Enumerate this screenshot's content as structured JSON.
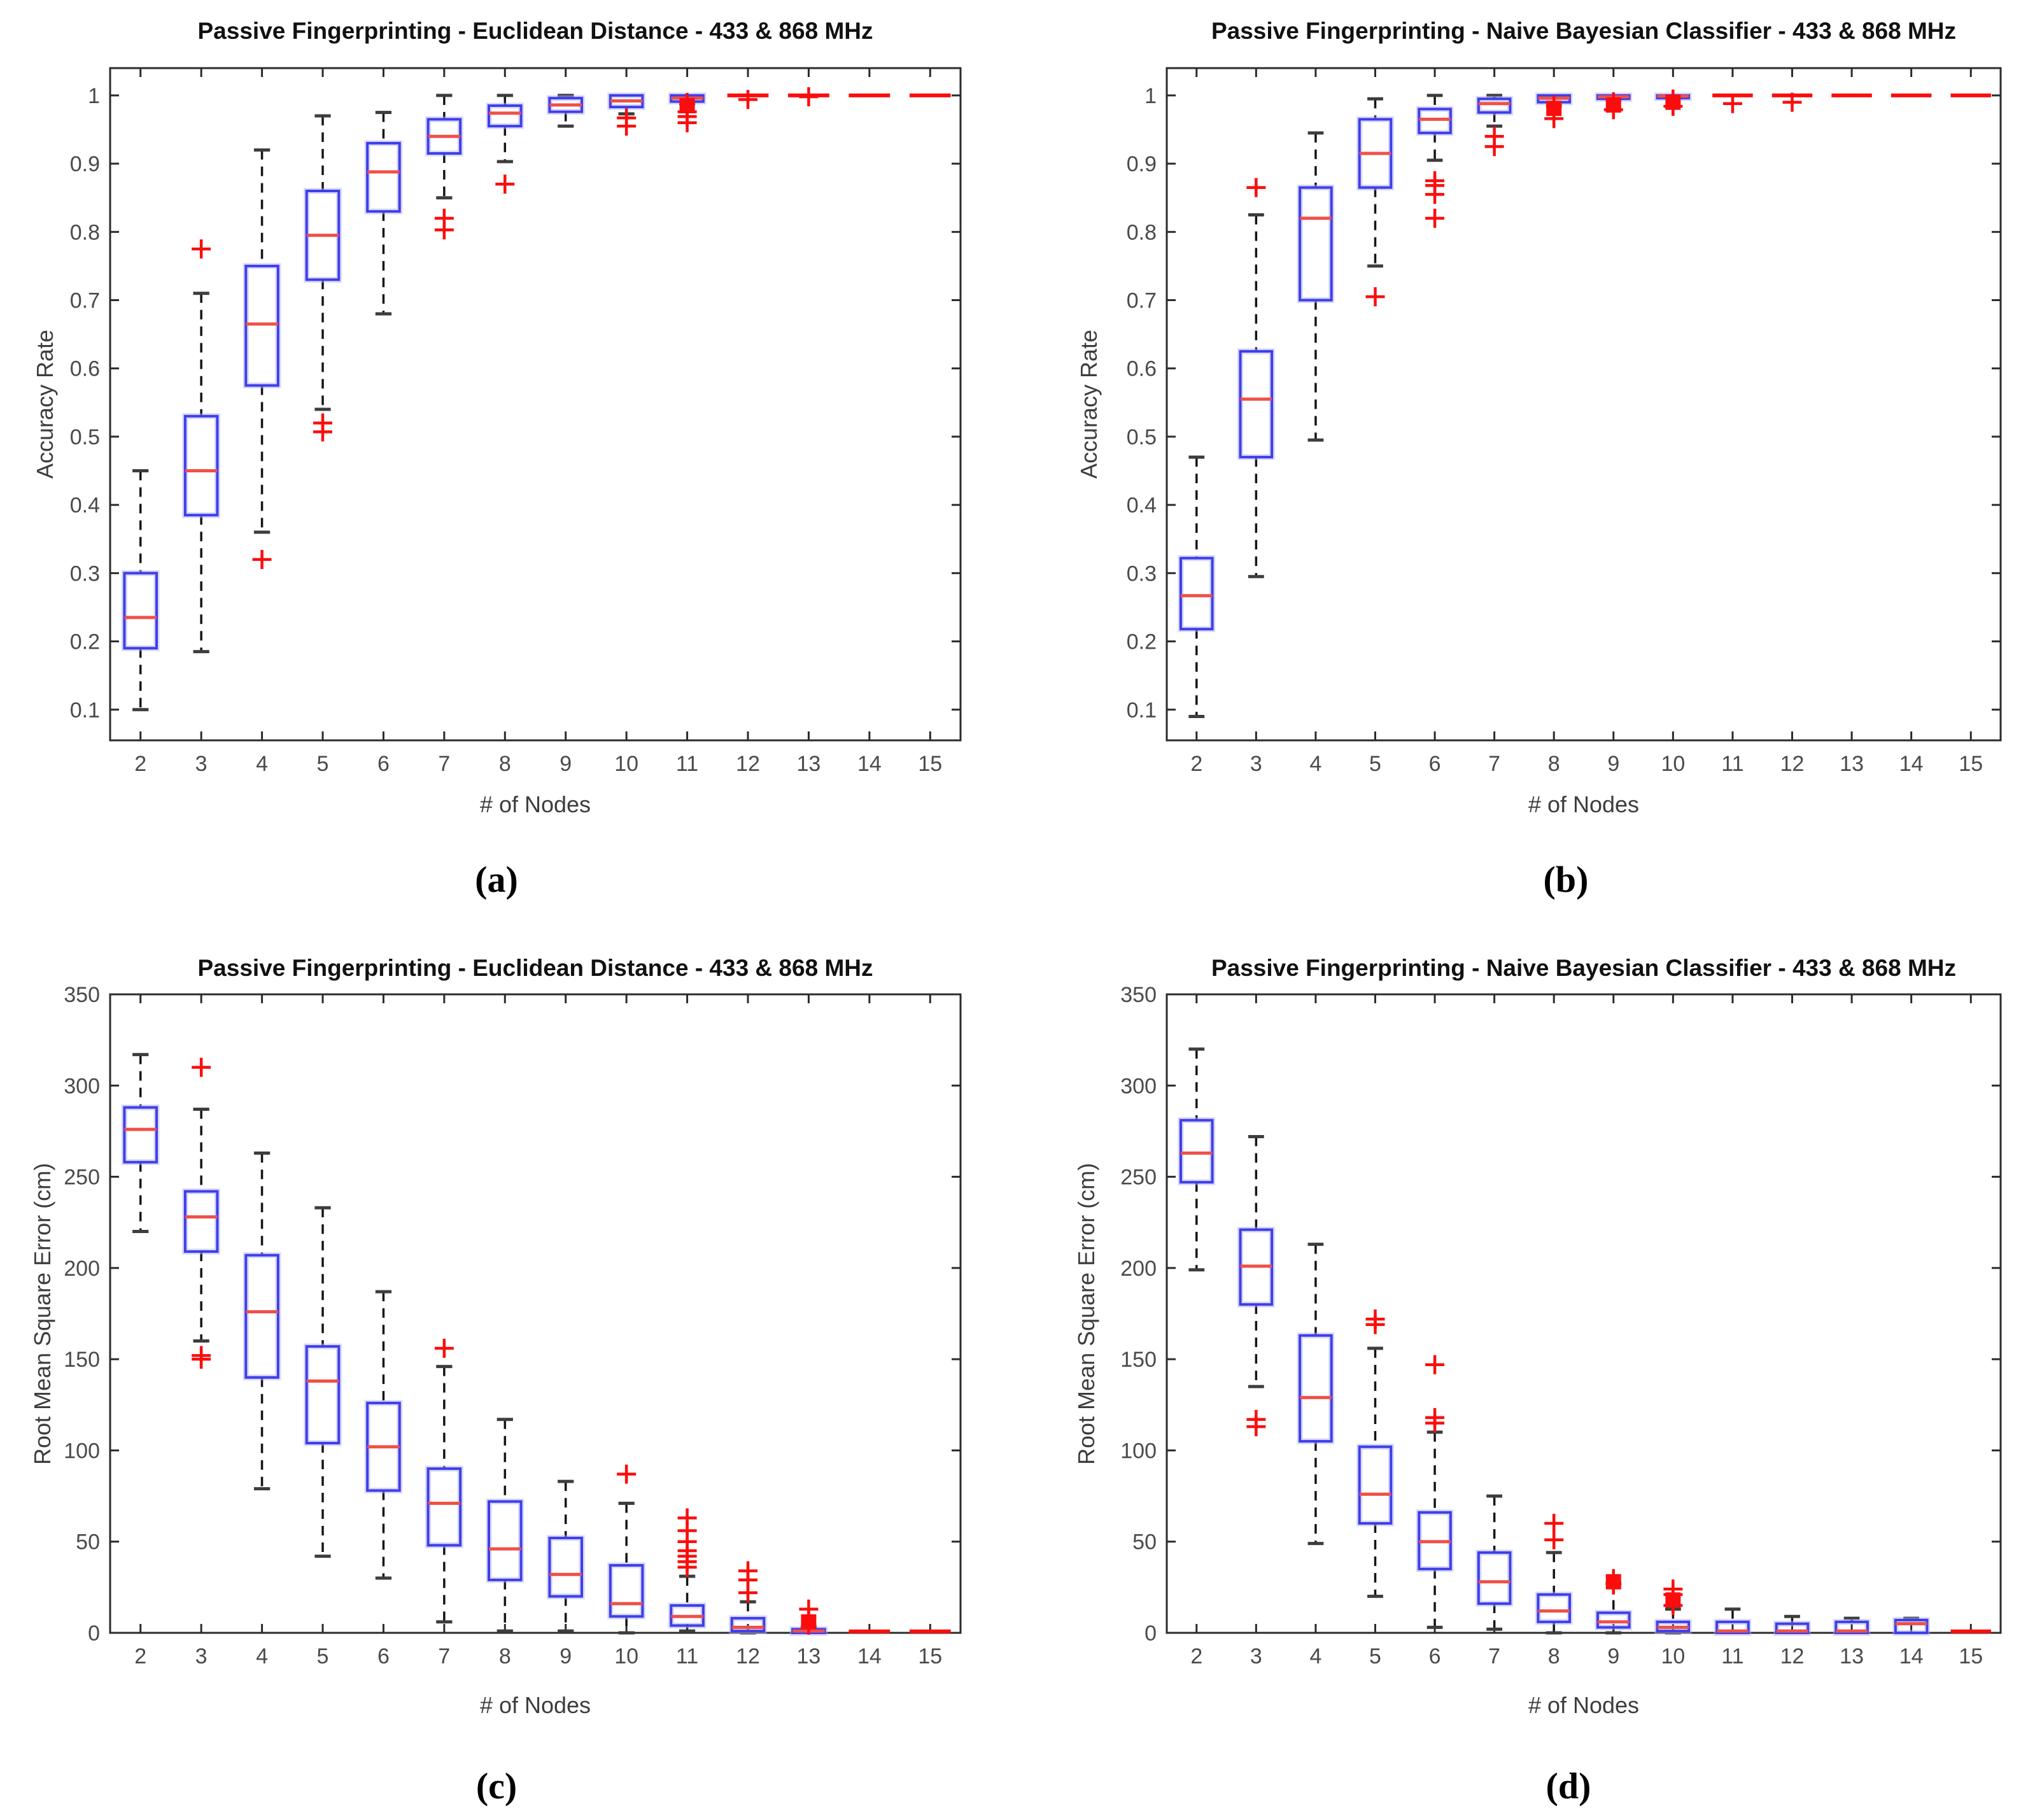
{
  "colors": {
    "box": "#3f3fe8",
    "box_halo": "#aeaeff",
    "median": "#ef5048",
    "outlier": "#fb0d0d",
    "whisker": "#141414",
    "cap": "#3d3d3d",
    "frame": "#2b2b2b",
    "tick_label": "#4a4a4a"
  },
  "chart_data": [
    {
      "type": "boxplot",
      "panel_label": "(a)",
      "title": "Passive Fingerprinting - Euclidean Distance - 433 & 868 MHz",
      "xlabel": "# of Nodes",
      "ylabel": "Accuracy Rate",
      "ylim": [
        0.055,
        1.04
      ],
      "grid": false,
      "categories": [
        "2",
        "3",
        "4",
        "5",
        "6",
        "7",
        "8",
        "9",
        "10",
        "11",
        "12",
        "13",
        "14",
        "15"
      ],
      "yticks": [
        {
          "v": 0.1,
          "t": "0.1"
        },
        {
          "v": 0.2,
          "t": "0.2"
        },
        {
          "v": 0.3,
          "t": "0.3"
        },
        {
          "v": 0.4,
          "t": "0.4"
        },
        {
          "v": 0.5,
          "t": "0.5"
        },
        {
          "v": 0.6,
          "t": "0.6"
        },
        {
          "v": 0.7,
          "t": "0.7"
        },
        {
          "v": 0.8,
          "t": "0.8"
        },
        {
          "v": 0.9,
          "t": "0.9"
        },
        {
          "v": 1.0,
          "t": "1"
        }
      ],
      "boxes": [
        {
          "x": "2",
          "lo": 0.1,
          "q1": 0.19,
          "med": 0.235,
          "q3": 0.3,
          "hi": 0.45,
          "out": [],
          "sq": []
        },
        {
          "x": "3",
          "lo": 0.185,
          "q1": 0.385,
          "med": 0.45,
          "q3": 0.53,
          "hi": 0.71,
          "out": [
            0.775
          ],
          "sq": []
        },
        {
          "x": "4",
          "lo": 0.36,
          "q1": 0.575,
          "med": 0.665,
          "q3": 0.75,
          "hi": 0.92,
          "out": [
            0.32
          ],
          "sq": []
        },
        {
          "x": "5",
          "lo": 0.54,
          "q1": 0.73,
          "med": 0.795,
          "q3": 0.86,
          "hi": 0.97,
          "out": [
            0.52,
            0.507
          ],
          "sq": []
        },
        {
          "x": "6",
          "lo": 0.68,
          "q1": 0.83,
          "med": 0.888,
          "q3": 0.93,
          "hi": 0.975,
          "out": [],
          "sq": []
        },
        {
          "x": "7",
          "lo": 0.85,
          "q1": 0.915,
          "med": 0.94,
          "q3": 0.965,
          "hi": 1.0,
          "out": [
            0.82,
            0.803
          ],
          "sq": []
        },
        {
          "x": "8",
          "lo": 0.903,
          "q1": 0.955,
          "med": 0.974,
          "q3": 0.985,
          "hi": 1.0,
          "out": [
            0.87
          ],
          "sq": []
        },
        {
          "x": "9",
          "lo": 0.955,
          "q1": 0.976,
          "med": 0.986,
          "q3": 0.996,
          "hi": 1.0,
          "out": [],
          "sq": []
        },
        {
          "x": "10",
          "lo": 0.973,
          "q1": 0.983,
          "med": 0.992,
          "q3": 1.0,
          "hi": 1.0,
          "out": [
            0.967,
            0.955
          ],
          "sq": []
        },
        {
          "x": "11",
          "lo": 0.988,
          "q1": 0.991,
          "med": 0.996,
          "q3": 1.0,
          "hi": 1.0,
          "out": [
            0.976,
            0.969,
            0.96
          ],
          "sq": [
            0.985
          ]
        },
        {
          "x": "12",
          "lo": 1.0,
          "q1": 1.0,
          "med": 1.0,
          "q3": 1.0,
          "hi": 1.0,
          "out": [
            0.994
          ],
          "sq": []
        },
        {
          "x": "13",
          "lo": 1.0,
          "q1": 1.0,
          "med": 1.0,
          "q3": 1.0,
          "hi": 1.0,
          "out": [
            0.998
          ],
          "sq": []
        },
        {
          "x": "14",
          "lo": 1.0,
          "q1": 1.0,
          "med": 1.0,
          "q3": 1.0,
          "hi": 1.0,
          "out": [],
          "sq": []
        },
        {
          "x": "15",
          "lo": 1.0,
          "q1": 1.0,
          "med": 1.0,
          "q3": 1.0,
          "hi": 1.0,
          "out": [],
          "sq": []
        }
      ]
    },
    {
      "type": "boxplot",
      "panel_label": "(b)",
      "title": "Passive Fingerprinting - Naive Bayesian Classifier - 433 & 868 MHz",
      "xlabel": "# of Nodes",
      "ylabel": "Accuracy Rate",
      "ylim": [
        0.055,
        1.04
      ],
      "grid": false,
      "categories": [
        "2",
        "3",
        "4",
        "5",
        "6",
        "7",
        "8",
        "9",
        "10",
        "11",
        "12",
        "13",
        "14",
        "15"
      ],
      "yticks": [
        {
          "v": 0.1,
          "t": "0.1"
        },
        {
          "v": 0.2,
          "t": "0.2"
        },
        {
          "v": 0.3,
          "t": "0.3"
        },
        {
          "v": 0.4,
          "t": "0.4"
        },
        {
          "v": 0.5,
          "t": "0.5"
        },
        {
          "v": 0.6,
          "t": "0.6"
        },
        {
          "v": 0.7,
          "t": "0.7"
        },
        {
          "v": 0.8,
          "t": "0.8"
        },
        {
          "v": 0.9,
          "t": "0.9"
        },
        {
          "v": 1.0,
          "t": "1"
        }
      ],
      "boxes": [
        {
          "x": "2",
          "lo": 0.09,
          "q1": 0.218,
          "med": 0.267,
          "q3": 0.322,
          "hi": 0.47,
          "out": [],
          "sq": []
        },
        {
          "x": "3",
          "lo": 0.295,
          "q1": 0.47,
          "med": 0.555,
          "q3": 0.625,
          "hi": 0.825,
          "out": [
            0.865
          ],
          "sq": []
        },
        {
          "x": "4",
          "lo": 0.495,
          "q1": 0.7,
          "med": 0.82,
          "q3": 0.865,
          "hi": 0.945,
          "out": [],
          "sq": []
        },
        {
          "x": "5",
          "lo": 0.75,
          "q1": 0.865,
          "med": 0.915,
          "q3": 0.965,
          "hi": 0.995,
          "out": [
            0.705
          ],
          "sq": []
        },
        {
          "x": "6",
          "lo": 0.905,
          "q1": 0.945,
          "med": 0.965,
          "q3": 0.98,
          "hi": 1.0,
          "out": [
            0.875,
            0.868,
            0.855,
            0.82
          ],
          "sq": []
        },
        {
          "x": "7",
          "lo": 0.955,
          "q1": 0.975,
          "med": 0.988,
          "q3": 0.995,
          "hi": 1.0,
          "out": [
            0.94,
            0.925
          ],
          "sq": []
        },
        {
          "x": "8",
          "lo": 0.985,
          "q1": 0.99,
          "med": 0.996,
          "q3": 1.0,
          "hi": 1.0,
          "out": [
            0.966
          ],
          "sq": [
            0.981
          ]
        },
        {
          "x": "9",
          "lo": 0.993,
          "q1": 0.995,
          "med": 0.998,
          "q3": 1.0,
          "hi": 1.0,
          "out": [
            0.979
          ],
          "sq": [
            0.986
          ]
        },
        {
          "x": "10",
          "lo": 0.995,
          "q1": 0.996,
          "med": 0.999,
          "q3": 1.0,
          "hi": 1.0,
          "out": [
            0.984
          ],
          "sq": [
            0.99
          ]
        },
        {
          "x": "11",
          "lo": 0.997,
          "q1": 0.998,
          "med": 1.0,
          "q3": 1.0,
          "hi": 1.0,
          "out": [
            0.988
          ],
          "sq": []
        },
        {
          "x": "12",
          "lo": 0.997,
          "q1": 0.998,
          "med": 1.0,
          "q3": 1.0,
          "hi": 1.0,
          "out": [
            0.99
          ],
          "sq": []
        },
        {
          "x": "13",
          "lo": 1.0,
          "q1": 1.0,
          "med": 1.0,
          "q3": 1.0,
          "hi": 1.0,
          "out": [],
          "sq": []
        },
        {
          "x": "14",
          "lo": 1.0,
          "q1": 1.0,
          "med": 1.0,
          "q3": 1.0,
          "hi": 1.0,
          "out": [],
          "sq": []
        },
        {
          "x": "15",
          "lo": 1.0,
          "q1": 1.0,
          "med": 1.0,
          "q3": 1.0,
          "hi": 1.0,
          "out": [],
          "sq": []
        }
      ]
    },
    {
      "type": "boxplot",
      "panel_label": "(c)",
      "title": "Passive Fingerprinting - Euclidean Distance - 433 & 868 MHz",
      "xlabel": "# of Nodes",
      "ylabel": "Root Mean Square Error (cm)",
      "ylim": [
        0,
        350
      ],
      "grid": false,
      "categories": [
        "2",
        "3",
        "4",
        "5",
        "6",
        "7",
        "8",
        "9",
        "10",
        "11",
        "12",
        "13",
        "14",
        "15"
      ],
      "yticks": [
        {
          "v": 0,
          "t": "0"
        },
        {
          "v": 50,
          "t": "50"
        },
        {
          "v": 100,
          "t": "100"
        },
        {
          "v": 150,
          "t": "150"
        },
        {
          "v": 200,
          "t": "200"
        },
        {
          "v": 250,
          "t": "250"
        },
        {
          "v": 300,
          "t": "300"
        },
        {
          "v": 350,
          "t": "350"
        }
      ],
      "boxes": [
        {
          "x": "2",
          "lo": 220,
          "q1": 258,
          "med": 276,
          "q3": 288,
          "hi": 317,
          "out": [],
          "sq": []
        },
        {
          "x": "3",
          "lo": 160,
          "q1": 209,
          "med": 228,
          "q3": 242,
          "hi": 287,
          "out": [
            310,
            152,
            150
          ],
          "sq": []
        },
        {
          "x": "4",
          "lo": 79,
          "q1": 140,
          "med": 176,
          "q3": 207,
          "hi": 263,
          "out": [],
          "sq": []
        },
        {
          "x": "5",
          "lo": 42,
          "q1": 104,
          "med": 138,
          "q3": 157,
          "hi": 233,
          "out": [],
          "sq": []
        },
        {
          "x": "6",
          "lo": 30,
          "q1": 78,
          "med": 102,
          "q3": 126,
          "hi": 187,
          "out": [],
          "sq": []
        },
        {
          "x": "7",
          "lo": 6,
          "q1": 48,
          "med": 71,
          "q3": 90,
          "hi": 146,
          "out": [
            156
          ],
          "sq": []
        },
        {
          "x": "8",
          "lo": 1,
          "q1": 29,
          "med": 46,
          "q3": 72,
          "hi": 117,
          "out": [],
          "sq": []
        },
        {
          "x": "9",
          "lo": 1,
          "q1": 20,
          "med": 32,
          "q3": 52,
          "hi": 83,
          "out": [],
          "sq": []
        },
        {
          "x": "10",
          "lo": 0,
          "q1": 9,
          "med": 16,
          "q3": 37,
          "hi": 71,
          "out": [
            87
          ],
          "sq": []
        },
        {
          "x": "11",
          "lo": 1,
          "q1": 4,
          "med": 9,
          "q3": 15,
          "hi": 31,
          "out": [
            63,
            56,
            50,
            45,
            42,
            39,
            36
          ],
          "sq": []
        },
        {
          "x": "12",
          "lo": 0,
          "q1": 1,
          "med": 3,
          "q3": 8,
          "hi": 17,
          "out": [
            34,
            29,
            22
          ],
          "sq": []
        },
        {
          "x": "13",
          "lo": 0,
          "q1": 0,
          "med": 1,
          "q3": 2,
          "hi": 3,
          "out": [
            13
          ],
          "sq": [
            6
          ]
        },
        {
          "x": "14",
          "lo": 0.8,
          "q1": 0.8,
          "med": 0.8,
          "q3": 0.8,
          "hi": 0.8,
          "out": [],
          "sq": []
        },
        {
          "x": "15",
          "lo": 0.8,
          "q1": 0.8,
          "med": 0.8,
          "q3": 0.8,
          "hi": 0.8,
          "out": [],
          "sq": []
        }
      ]
    },
    {
      "type": "boxplot",
      "panel_label": "(d)",
      "title": "Passive Fingerprinting - Naive Bayesian Classifier - 433 & 868 MHz",
      "xlabel": "# of Nodes",
      "ylabel": "Root Mean Square Error (cm)",
      "ylim": [
        0,
        350
      ],
      "grid": false,
      "categories": [
        "2",
        "3",
        "4",
        "5",
        "6",
        "7",
        "8",
        "9",
        "10",
        "11",
        "12",
        "13",
        "14",
        "15"
      ],
      "yticks": [
        {
          "v": 0,
          "t": "0"
        },
        {
          "v": 50,
          "t": "50"
        },
        {
          "v": 100,
          "t": "100"
        },
        {
          "v": 150,
          "t": "150"
        },
        {
          "v": 200,
          "t": "200"
        },
        {
          "v": 250,
          "t": "250"
        },
        {
          "v": 300,
          "t": "300"
        },
        {
          "v": 350,
          "t": "350"
        }
      ],
      "boxes": [
        {
          "x": "2",
          "lo": 199,
          "q1": 247,
          "med": 263,
          "q3": 281,
          "hi": 320,
          "out": [],
          "sq": []
        },
        {
          "x": "3",
          "lo": 135,
          "q1": 180,
          "med": 201,
          "q3": 221,
          "hi": 272,
          "out": [
            117,
            113
          ],
          "sq": []
        },
        {
          "x": "4",
          "lo": 49,
          "q1": 105,
          "med": 129,
          "q3": 163,
          "hi": 213,
          "out": [],
          "sq": []
        },
        {
          "x": "5",
          "lo": 20,
          "q1": 60,
          "med": 76,
          "q3": 102,
          "hi": 156,
          "out": [
            172,
            169
          ],
          "sq": []
        },
        {
          "x": "6",
          "lo": 3,
          "q1": 35,
          "med": 50,
          "q3": 66,
          "hi": 110,
          "out": [
            147,
            118,
            115
          ],
          "sq": []
        },
        {
          "x": "7",
          "lo": 2,
          "q1": 16,
          "med": 28,
          "q3": 44,
          "hi": 75,
          "out": [],
          "sq": []
        },
        {
          "x": "8",
          "lo": 0,
          "q1": 6,
          "med": 12,
          "q3": 21,
          "hi": 44,
          "out": [
            60,
            51
          ],
          "sq": []
        },
        {
          "x": "9",
          "lo": 0,
          "q1": 3,
          "med": 6,
          "q3": 11,
          "hi": 27,
          "out": [],
          "sq": [
            28
          ]
        },
        {
          "x": "10",
          "lo": 0,
          "q1": 1,
          "med": 3,
          "q3": 6,
          "hi": 13,
          "out": [
            24,
            21,
            15
          ],
          "sq": [
            18
          ]
        },
        {
          "x": "11",
          "lo": 0,
          "q1": 0,
          "med": 1,
          "q3": 6,
          "hi": 13,
          "out": [],
          "sq": []
        },
        {
          "x": "12",
          "lo": 0,
          "q1": 0,
          "med": 1,
          "q3": 5,
          "hi": 9,
          "out": [],
          "sq": []
        },
        {
          "x": "13",
          "lo": 0,
          "q1": 0,
          "med": 1,
          "q3": 6,
          "hi": 8,
          "out": [],
          "sq": []
        },
        {
          "x": "14",
          "lo": 0,
          "q1": 0,
          "med": 5,
          "q3": 7,
          "hi": 8,
          "out": [],
          "sq": []
        },
        {
          "x": "15",
          "lo": 0.8,
          "q1": 0.8,
          "med": 0.8,
          "q3": 0.8,
          "hi": 0.8,
          "out": [],
          "sq": []
        }
      ]
    }
  ]
}
